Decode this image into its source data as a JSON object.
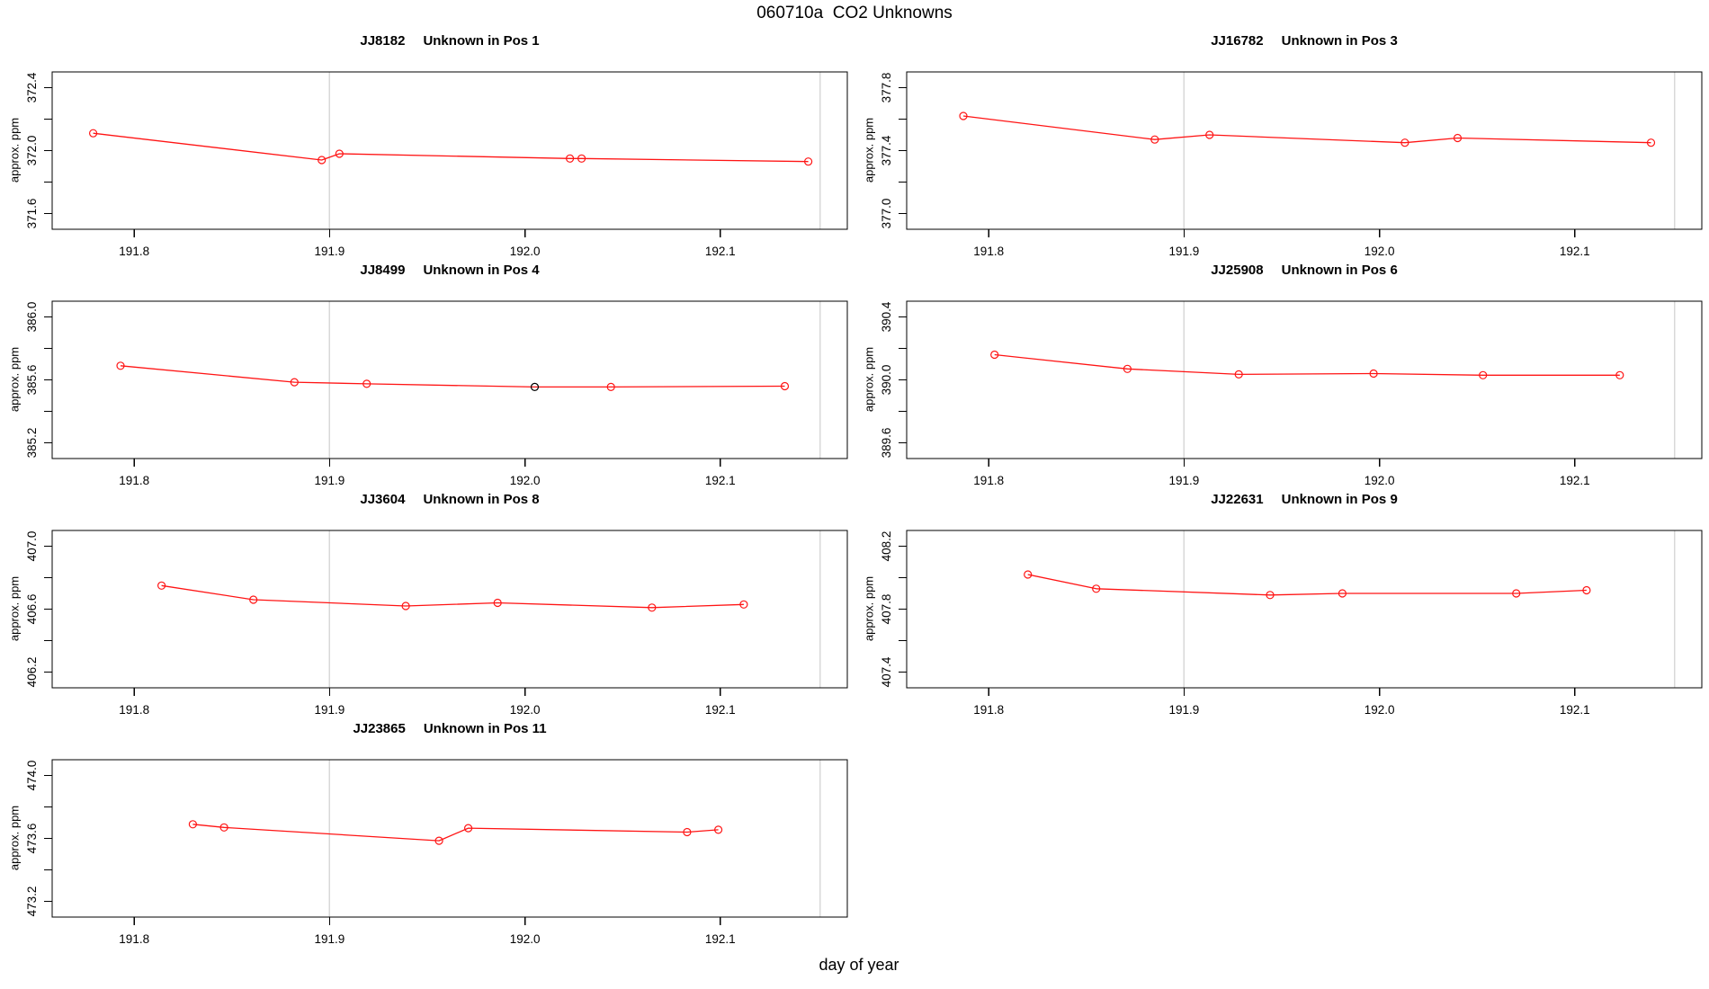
{
  "figure": {
    "main_title": "060710a  CO2 Unknowns",
    "x_axis_label": "day of year",
    "y_axis_label": "approx. ppm"
  },
  "colors": {
    "series_red": "#ff1414",
    "special_point_black": "#000000",
    "gridline_gray": "#d8d8d8",
    "axis_black": "#000000",
    "background": "#ffffff"
  },
  "axes": {
    "xlim": [
      191.758,
      192.165
    ],
    "x_ticks": [
      191.8,
      191.9,
      192.0,
      192.1
    ],
    "x_tick_labels": [
      "191.8",
      "191.9",
      "192.0",
      "192.1"
    ],
    "y_half_span": 0.5,
    "y_tick_step": 0.2,
    "gridlines_x": [
      191.9,
      192.151
    ]
  },
  "chart_data": [
    {
      "type": "line",
      "sample_id": "JJ8182",
      "title_label": "Unknown in Pos 1",
      "position": "Pos 1",
      "ylabel": "approx. ppm",
      "y_mid": 372.0,
      "y_tick_labels": [
        "371.6",
        "372.0",
        "372.4"
      ],
      "x": [
        191.779,
        191.896,
        191.905,
        192.023,
        192.029,
        192.145
      ],
      "y": [
        372.11,
        371.94,
        371.98,
        371.95,
        371.95,
        371.93
      ]
    },
    {
      "type": "line",
      "sample_id": "JJ16782",
      "title_label": "Unknown in Pos 3",
      "position": "Pos 3",
      "ylabel": "approx. ppm",
      "y_mid": 377.4,
      "y_tick_labels": [
        "377.0",
        "377.4",
        "377.8"
      ],
      "x": [
        191.787,
        191.885,
        191.913,
        192.013,
        192.04,
        192.139
      ],
      "y": [
        377.62,
        377.47,
        377.5,
        377.45,
        377.48,
        377.45
      ]
    },
    {
      "type": "line",
      "sample_id": "JJ8499",
      "title_label": "Unknown in Pos 4",
      "position": "Pos 4",
      "ylabel": "approx. ppm",
      "y_mid": 385.6,
      "y_tick_labels": [
        "385.2",
        "385.6",
        "386.0"
      ],
      "black_point_index": 3,
      "x": [
        191.793,
        191.882,
        191.919,
        192.005,
        192.044,
        192.133
      ],
      "y": [
        385.69,
        385.585,
        385.575,
        385.555,
        385.555,
        385.56
      ]
    },
    {
      "type": "line",
      "sample_id": "JJ25908",
      "title_label": "Unknown in Pos 6",
      "position": "Pos 6",
      "ylabel": "approx. ppm",
      "y_mid": 390.0,
      "y_tick_labels": [
        "389.6",
        "390.0",
        "390.4"
      ],
      "x": [
        191.803,
        191.871,
        191.928,
        191.997,
        192.053,
        192.123
      ],
      "y": [
        390.16,
        390.07,
        390.035,
        390.04,
        390.03,
        390.03
      ]
    },
    {
      "type": "line",
      "sample_id": "JJ3604",
      "title_label": "Unknown in Pos 8",
      "position": "Pos 8",
      "ylabel": "approx. ppm",
      "y_mid": 406.6,
      "y_tick_labels": [
        "406.2",
        "406.6",
        "407.0"
      ],
      "x": [
        191.814,
        191.861,
        191.939,
        191.986,
        192.065,
        192.112
      ],
      "y": [
        406.75,
        406.66,
        406.62,
        406.64,
        406.61,
        406.63
      ]
    },
    {
      "type": "line",
      "sample_id": "JJ22631",
      "title_label": "Unknown in Pos 9",
      "position": "Pos 9",
      "ylabel": "approx. ppm",
      "y_mid": 407.8,
      "y_tick_labels": [
        "407.4",
        "407.8",
        "408.2"
      ],
      "x": [
        191.82,
        191.855,
        191.944,
        191.981,
        192.07,
        192.106
      ],
      "y": [
        408.02,
        407.93,
        407.89,
        407.9,
        407.9,
        407.92
      ]
    },
    {
      "type": "line",
      "sample_id": "JJ23865",
      "title_label": "Unknown in Pos 11",
      "position": "Pos 11",
      "ylabel": "approx. ppm",
      "y_mid": 473.6,
      "y_tick_labels": [
        "473.2",
        "473.6",
        "474.0"
      ],
      "x": [
        191.83,
        191.846,
        191.956,
        191.971,
        192.083,
        192.099
      ],
      "y": [
        473.69,
        473.67,
        473.585,
        473.665,
        473.64,
        473.655
      ]
    }
  ]
}
